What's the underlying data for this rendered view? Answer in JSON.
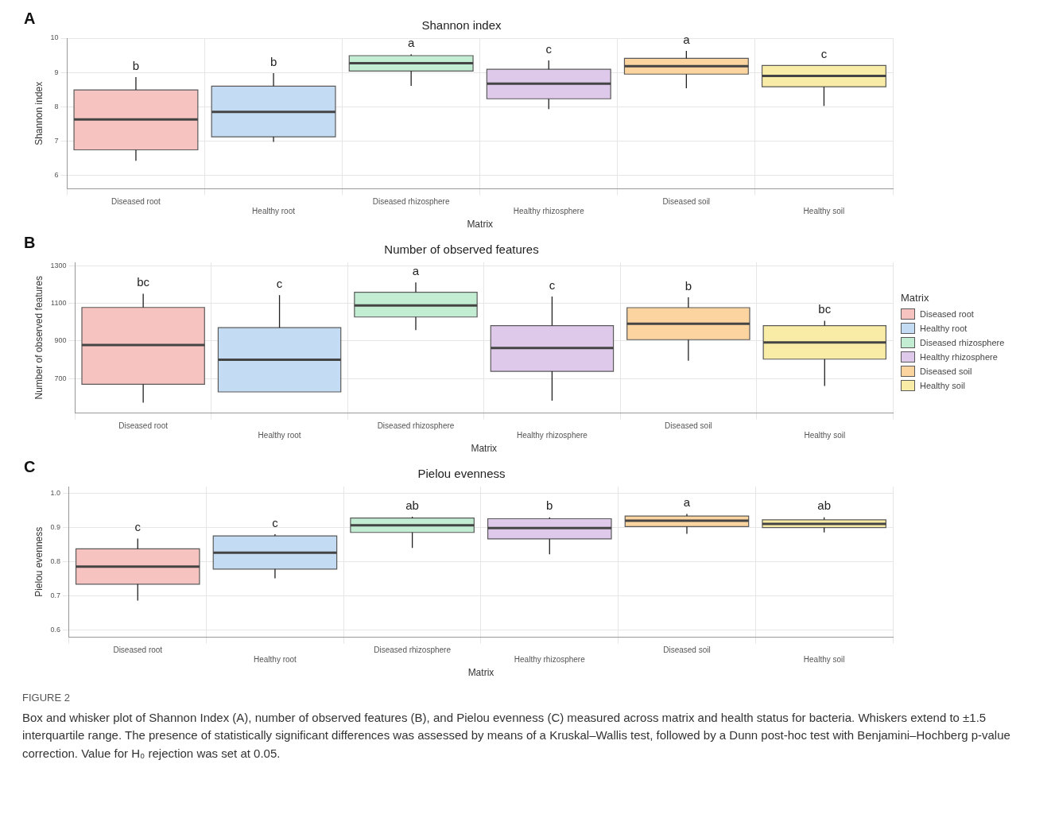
{
  "chart_data": [
    {
      "type": "box",
      "title": "Shannon index",
      "xlabel": "Matrix",
      "ylabel": "Shannon index",
      "categories": [
        "Diseased root",
        "Healthy root",
        "Diseased rhizosphere",
        "Healthy rhizosphere",
        "Diseased soil",
        "Healthy soil"
      ],
      "colors": [
        "#f7c3c0",
        "#c3dcf3",
        "#c2edd3",
        "#dfc9ea",
        "#fbd4a0",
        "#f8eca6"
      ],
      "boxes": [
        {
          "low": 6.42,
          "q1": 6.74,
          "median": 7.63,
          "q3": 8.49,
          "high": 8.86
        },
        {
          "low": 6.97,
          "q1": 7.12,
          "median": 7.85,
          "q3": 8.6,
          "high": 8.98
        },
        {
          "low": 8.61,
          "q1": 9.04,
          "median": 9.27,
          "q3": 9.49,
          "high": 9.53
        },
        {
          "low": 7.93,
          "q1": 8.23,
          "median": 8.67,
          "q3": 9.09,
          "high": 9.35
        },
        {
          "low": 8.54,
          "q1": 8.95,
          "median": 9.18,
          "q3": 9.41,
          "high": 9.63
        },
        {
          "low": 8.02,
          "q1": 8.58,
          "median": 8.9,
          "q3": 9.2,
          "high": 9.2
        }
      ],
      "ylim": [
        5.6,
        10
      ],
      "yticks": [
        6,
        7,
        8,
        9,
        10
      ],
      "grid": true,
      "annotations": [
        "A",
        "b",
        "b",
        "a",
        "c",
        "a",
        "c"
      ]
    },
    {
      "type": "box",
      "title": "Number of observed features",
      "xlabel": "Matrix",
      "ylabel": "Number of observed features",
      "legend_title": "Matrix",
      "legend": "right",
      "categories": [
        "Diseased root",
        "Healthy root",
        "Diseased rhizosphere",
        "Healthy rhizosphere",
        "Diseased soil",
        "Healthy soil"
      ],
      "series": [
        {
          "name": "Diseased root",
          "color": "#f7c3c0",
          "boxes": [
            {
              "low": 571,
              "q1": 669,
              "median": 878,
              "q3": 1079,
              "high": 1152
            },
            null,
            null,
            null,
            null,
            null
          ]
        },
        {
          "name": "Healthy root",
          "color": "#c3dcf3",
          "boxes": [
            null,
            {
              "low": 628,
              "q1": 628,
              "median": 800,
              "q3": 971,
              "high": 1145
            },
            null,
            null,
            null,
            null
          ]
        },
        {
          "name": "Diseased rhizosphere",
          "color": "#c2edd3",
          "boxes": [
            null,
            null,
            {
              "low": 958,
              "q1": 1028,
              "median": 1090,
              "q3": 1160,
              "high": 1213
            },
            null,
            null,
            null
          ]
        },
        {
          "name": "Healthy rhizosphere",
          "color": "#dfc9ea",
          "boxes": [
            null,
            null,
            null,
            {
              "low": 581,
              "q1": 738,
              "median": 862,
              "q3": 982,
              "high": 1137
            },
            null,
            null
          ]
        },
        {
          "name": "Diseased soil",
          "color": "#fbd4a0",
          "boxes": [
            null,
            null,
            null,
            null,
            {
              "low": 795,
              "q1": 907,
              "median": 992,
              "q3": 1078,
              "high": 1133
            },
            null
          ]
        },
        {
          "name": "Healthy soil",
          "color": "#f8eca6",
          "boxes": [
            null,
            null,
            null,
            null,
            null,
            {
              "low": 660,
              "q1": 803,
              "median": 892,
              "q3": 982,
              "high": 1008
            }
          ]
        }
      ],
      "ylim": [
        515,
        1320
      ],
      "yticks": [
        700,
        900,
        1100,
        1300
      ],
      "grid": true,
      "annotations": [
        "B",
        "bc",
        "c",
        "a",
        "c",
        "b",
        "bc"
      ]
    },
    {
      "type": "box",
      "title": "Pielou evenness",
      "xlabel": "Matrix",
      "ylabel": "Pielou evenness",
      "categories": [
        "Diseased root",
        "Healthy root",
        "Diseased rhizosphere",
        "Healthy rhizosphere",
        "Diseased soil",
        "Healthy soil"
      ],
      "colors": [
        "#f7c3c0",
        "#c3dcf3",
        "#c2edd3",
        "#dfc9ea",
        "#fbd4a0",
        "#f8eca6"
      ],
      "boxes": [
        {
          "low": 0.687,
          "q1": 0.735,
          "median": 0.786,
          "q3": 0.838,
          "high": 0.868
        },
        {
          "low": 0.752,
          "q1": 0.779,
          "median": 0.827,
          "q3": 0.876,
          "high": 0.881
        },
        {
          "low": 0.841,
          "q1": 0.886,
          "median": 0.907,
          "q3": 0.928,
          "high": 0.932
        },
        {
          "low": 0.822,
          "q1": 0.867,
          "median": 0.899,
          "q3": 0.926,
          "high": 0.93
        },
        {
          "low": 0.882,
          "q1": 0.903,
          "median": 0.92,
          "q3": 0.934,
          "high": 0.94
        },
        {
          "low": 0.886,
          "q1": 0.9,
          "median": 0.911,
          "q3": 0.923,
          "high": 0.93
        }
      ],
      "ylim": [
        0.58,
        1.02
      ],
      "yticks": [
        0.6,
        0.7,
        0.8,
        0.9,
        {
          "value": 1,
          "label": "1.0"
        }
      ],
      "grid": true,
      "annotations": [
        "C",
        "c",
        "c",
        "ab",
        "b",
        "a",
        "ab",
        "FIGURE 2",
        "Box and whisker plot of Shannon Index (A), number of observed features (B), and Pielou evenness (C) measured across matrix and health status for bacteria. Whiskers extend to ±1.5 interquartile range. The presence of statistically significant differences was assessed by means of a Kruskal–Wallis test, followed by a Dunn post-hoc test with Benjamini–Hochberg p-value correction. Value for H₀ rejection was set at 0.05."
      ]
    }
  ]
}
